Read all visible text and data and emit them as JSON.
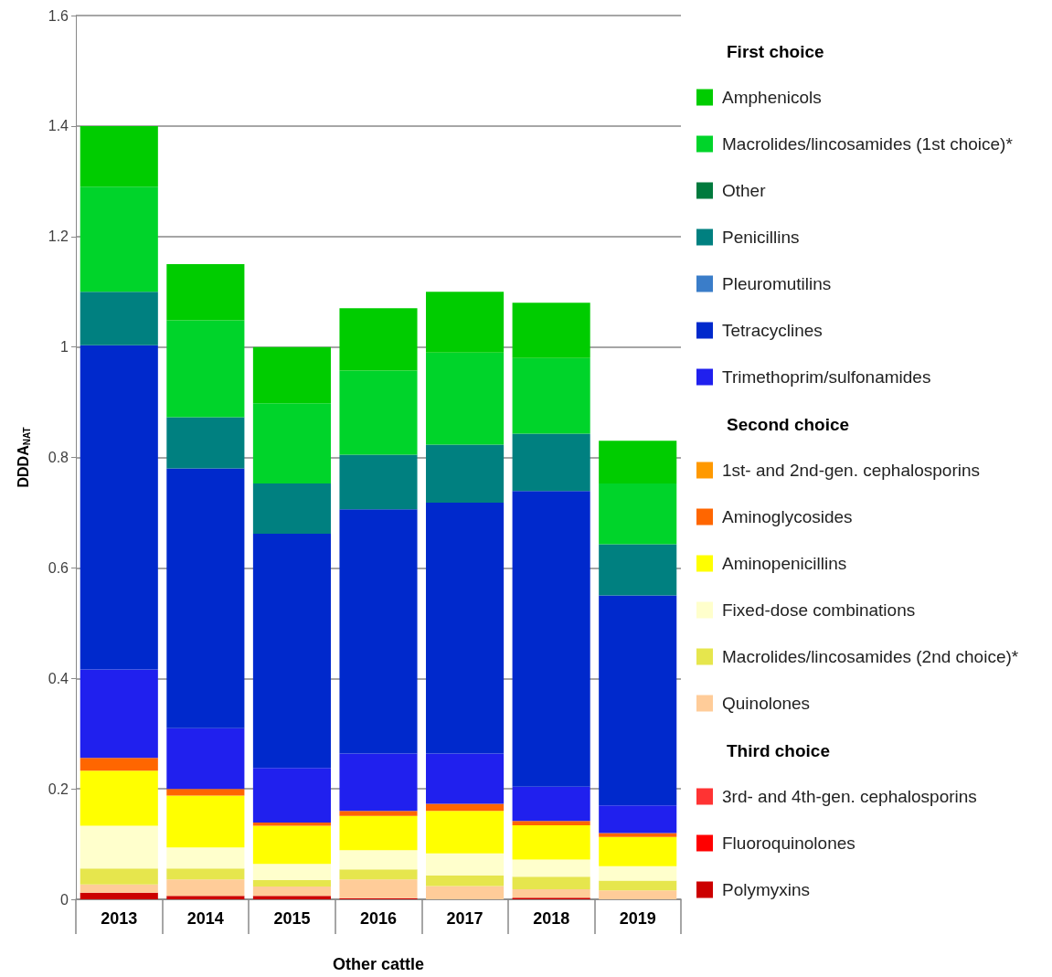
{
  "chart_data": {
    "type": "bar",
    "stacked": true,
    "xlabel": "Other cattle",
    "ylabel": "DDDA$_{NAT}$",
    "categories": [
      "2013",
      "2014",
      "2015",
      "2016",
      "2017",
      "2018",
      "2019"
    ],
    "ylim": [
      0,
      1.6
    ],
    "yticks": [
      0,
      0.2,
      0.4,
      0.6,
      0.8,
      1,
      1.2,
      1.4,
      1.6
    ],
    "grid": "y",
    "legend": "right",
    "marker": "square",
    "annotations": [
      "First choice",
      "Second choice",
      "Third choice"
    ],
    "series": [
      {
        "name": "Polymyxins",
        "color": "#cc0000",
        "values": [
          0.012,
          0.006,
          0.006,
          0.002,
          0,
          0.003,
          0
        ]
      },
      {
        "name": "Fluoroquinolones",
        "color": "#ff0000",
        "values": [
          0,
          0,
          0,
          0,
          0,
          0,
          0
        ]
      },
      {
        "name": "3rd- and 4th-gen. cephalosporins",
        "color": "#ff3333",
        "values": [
          0,
          0,
          0,
          0,
          0,
          0,
          0
        ]
      },
      {
        "name": "Quinolones",
        "color": "#ffcc99",
        "values": [
          0.015,
          0.03,
          0.017,
          0.034,
          0.024,
          0.015,
          0.016
        ]
      },
      {
        "name": "Macrolides/lincosamides (2nd choice)*",
        "color": "#e6e64d",
        "values": [
          0.029,
          0.02,
          0.012,
          0.018,
          0.019,
          0.023,
          0.018
        ]
      },
      {
        "name": "Fixed-dose combinations",
        "color": "#ffffcc",
        "values": [
          0.077,
          0.038,
          0.029,
          0.035,
          0.04,
          0.031,
          0.026
        ]
      },
      {
        "name": "Aminopenicillins",
        "color": "#ffff00",
        "values": [
          0.1,
          0.094,
          0.069,
          0.062,
          0.077,
          0.062,
          0.053
        ]
      },
      {
        "name": "Aminoglycosides",
        "color": "#ff6600",
        "values": [
          0.023,
          0.012,
          0.006,
          0.009,
          0.013,
          0.008,
          0.007
        ]
      },
      {
        "name": "1st- and 2nd-gen. cephalosporins",
        "color": "#ff9900",
        "values": [
          0,
          0,
          0,
          0,
          0,
          0,
          0
        ]
      },
      {
        "name": "Trimethoprim/sulfonamides",
        "color": "#2020ee",
        "values": [
          0.16,
          0.11,
          0.099,
          0.104,
          0.091,
          0.062,
          0.05
        ]
      },
      {
        "name": "Tetracyclines",
        "color": "#0029cc",
        "values": [
          0.587,
          0.47,
          0.424,
          0.442,
          0.454,
          0.535,
          0.38
        ]
      },
      {
        "name": "Pleuromutilins",
        "color": "#3a7dc9",
        "values": [
          0,
          0,
          0,
          0,
          0,
          0,
          0
        ]
      },
      {
        "name": "Penicillins",
        "color": "#008080",
        "values": [
          0.097,
          0.093,
          0.091,
          0.099,
          0.105,
          0.104,
          0.093
        ]
      },
      {
        "name": "Other",
        "color": "#007a3d",
        "values": [
          0,
          0,
          0,
          0,
          0,
          0,
          0
        ]
      },
      {
        "name": "Macrolides/lincosamides (1st choice)*",
        "color": "#00d42a",
        "values": [
          0.19,
          0.175,
          0.145,
          0.152,
          0.167,
          0.137,
          0.11
        ]
      },
      {
        "name": "Amphenicols",
        "color": "#00cc00",
        "values": [
          0.11,
          0.102,
          0.102,
          0.113,
          0.11,
          0.1,
          0.077
        ]
      }
    ]
  }
}
